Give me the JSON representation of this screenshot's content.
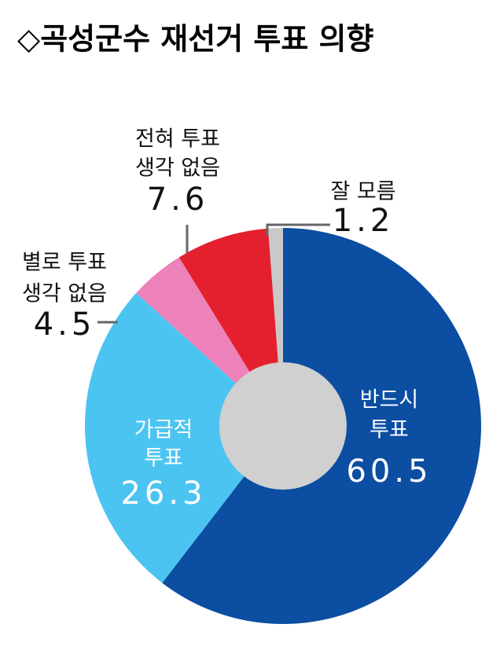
{
  "chart_data": {
    "type": "donut",
    "title": "◇곡성군수 재선거 투표 의향",
    "categories": [
      [
        "반드시",
        "투표"
      ],
      [
        "가급적",
        "투표"
      ],
      [
        "별로 투표",
        "생각 없음"
      ],
      [
        "전혀 투표",
        "생각 없음"
      ],
      [
        "잘 모름"
      ]
    ],
    "values": [
      60.5,
      26.3,
      4.5,
      7.6,
      1.2
    ],
    "colors": [
      "#0b4ea2",
      "#4cc4f1",
      "#ec82b9",
      "#e4202e",
      "#c9c9c9"
    ]
  }
}
